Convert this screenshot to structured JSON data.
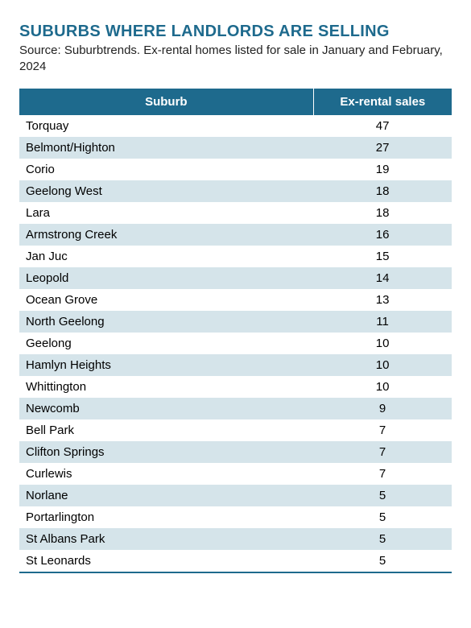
{
  "title": "SUBURBS WHERE LANDLORDS ARE SELLING",
  "source": "Source: Suburbtrends. Ex-rental homes listed for sale in January and February, 2024",
  "table": {
    "type": "table",
    "columns": [
      "Suburb",
      "Ex-rental sales"
    ],
    "column_alignments": [
      "left",
      "center"
    ],
    "column_widths": [
      "68%",
      "32%"
    ],
    "header_bg": "#1e6a8d",
    "header_text_color": "#ffffff",
    "row_bg_odd": "#ffffff",
    "row_bg_even": "#d5e4ea",
    "bottom_border_color": "#1e6a8d",
    "title_color": "#1e6a8d",
    "text_color": "#000000",
    "title_fontsize": 20,
    "header_fontsize": 15,
    "cell_fontsize": 15,
    "rows": [
      [
        "Torquay",
        47
      ],
      [
        "Belmont/Highton",
        27
      ],
      [
        "Corio",
        19
      ],
      [
        "Geelong West",
        18
      ],
      [
        "Lara",
        18
      ],
      [
        "Armstrong Creek",
        16
      ],
      [
        "Jan Juc",
        15
      ],
      [
        "Leopold",
        14
      ],
      [
        "Ocean Grove",
        13
      ],
      [
        "North Geelong",
        11
      ],
      [
        "Geelong",
        10
      ],
      [
        "Hamlyn Heights",
        10
      ],
      [
        "Whittington",
        10
      ],
      [
        "Newcomb",
        9
      ],
      [
        "Bell Park",
        7
      ],
      [
        "Clifton Springs",
        7
      ],
      [
        "Curlewis",
        7
      ],
      [
        "Norlane",
        5
      ],
      [
        "Portarlington",
        5
      ],
      [
        "St Albans Park",
        5
      ],
      [
        "St Leonards",
        5
      ]
    ]
  }
}
